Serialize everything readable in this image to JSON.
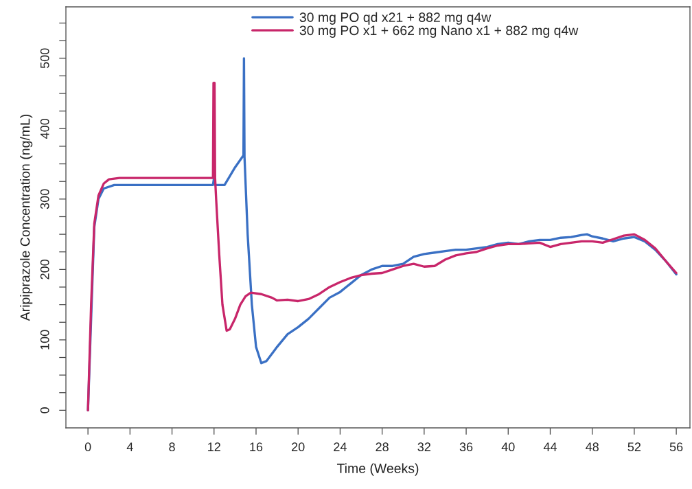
{
  "chart_data": {
    "type": "line",
    "xlabel": "Time (Weeks)",
    "ylabel": "Aripiprazole Concentration (ng/mL)",
    "xlim": [
      -2.1,
      57.3
    ],
    "xticks": [
      0,
      4,
      8,
      12,
      16,
      20,
      24,
      28,
      32,
      36,
      40,
      44,
      48,
      52,
      56
    ],
    "ylim": [
      -25,
      573
    ],
    "yticks": [
      0,
      {
        "value": 25,
        "label": null
      },
      {
        "value": 50,
        "label": null
      },
      {
        "value": 75,
        "label": null
      },
      100,
      {
        "value": 125,
        "label": null
      },
      {
        "value": 150,
        "label": null
      },
      {
        "value": 175,
        "label": null
      },
      200,
      {
        "value": 225,
        "label": null
      },
      {
        "value": 250,
        "label": null
      },
      {
        "value": 275,
        "label": null
      },
      300,
      {
        "value": 325,
        "label": null
      },
      {
        "value": 350,
        "label": null
      },
      {
        "value": 375,
        "label": null
      },
      400,
      {
        "value": 425,
        "label": null
      },
      {
        "value": 450,
        "label": null
      },
      {
        "value": 475,
        "label": null
      },
      500,
      {
        "value": 525,
        "label": null
      },
      {
        "value": 550,
        "label": null
      }
    ],
    "grid": false,
    "legend": "top",
    "marker": "none",
    "line_style": "solid",
    "series": [
      {
        "name": "30 mg PO qd x21 + 882 mg q4w",
        "color": "#3a70c4",
        "x": [
          0,
          0.6,
          1,
          1.5,
          2.5,
          11.9,
          12,
          12.1,
          13,
          14,
          14.8,
          14.85,
          14.9,
          15.2,
          15.6,
          16,
          16.5,
          17,
          18,
          19,
          20,
          21,
          22,
          23,
          24,
          25,
          26,
          27,
          28,
          29,
          30,
          31,
          32,
          33,
          34,
          35,
          36,
          37,
          38,
          39,
          40,
          41,
          42,
          43,
          44,
          45,
          46,
          47,
          47.5,
          48,
          49,
          50,
          51,
          52,
          53,
          54,
          55,
          56
        ],
        "values": [
          0,
          260,
          300,
          315,
          320,
          320,
          330,
          320,
          320,
          345,
          362,
          500,
          360,
          250,
          150,
          90,
          67,
          70,
          90,
          108,
          118,
          130,
          145,
          160,
          168,
          180,
          192,
          200,
          205,
          205,
          208,
          218,
          222,
          224,
          226,
          228,
          228,
          230,
          232,
          236,
          238,
          236,
          240,
          242,
          242,
          245,
          246,
          249,
          250,
          247,
          244,
          240,
          244,
          246,
          240,
          228,
          212,
          193
        ]
      },
      {
        "name": "30 mg PO x1 + 662 mg Nano x1 + 882 mg q4w",
        "color": "#c8266a",
        "x": [
          0,
          0.3,
          0.6,
          1,
          1.5,
          2,
          3,
          11.9,
          11.95,
          12.05,
          12.1,
          12.2,
          12.5,
          12.8,
          13.2,
          13.5,
          14,
          14.5,
          15,
          15.5,
          16.5,
          17.5,
          18,
          19,
          20,
          21,
          22,
          23,
          24,
          25,
          26,
          27,
          28,
          29,
          30,
          31,
          32,
          33,
          34,
          35,
          36,
          37,
          38,
          39,
          40,
          41,
          42,
          43,
          44,
          45,
          46,
          47,
          48,
          49,
          50,
          51,
          52,
          53,
          54,
          55,
          56
        ],
        "values": [
          0,
          150,
          265,
          305,
          322,
          328,
          330,
          330,
          465,
          465,
          330,
          300,
          220,
          150,
          113,
          115,
          130,
          150,
          162,
          167,
          165,
          160,
          156,
          157,
          155,
          158,
          165,
          175,
          182,
          188,
          192,
          194,
          195,
          200,
          205,
          208,
          204,
          205,
          214,
          220,
          223,
          225,
          230,
          234,
          236,
          236,
          237,
          238,
          232,
          236,
          238,
          240,
          240,
          238,
          243,
          248,
          250,
          242,
          230,
          212,
          195
        ]
      }
    ]
  }
}
